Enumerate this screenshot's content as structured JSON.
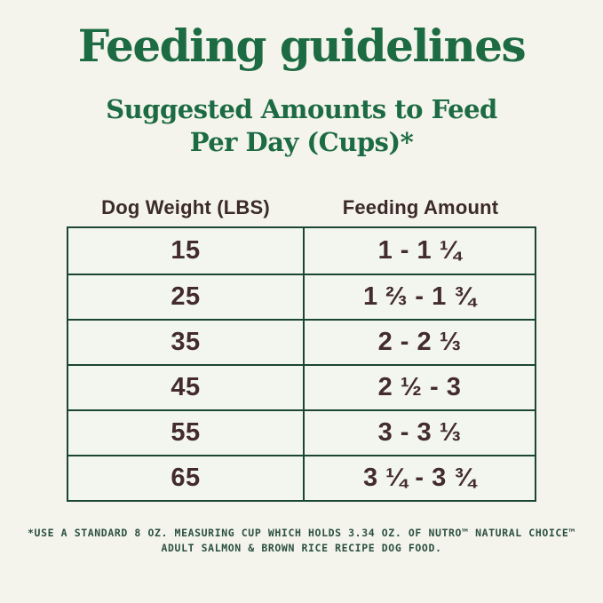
{
  "page": {
    "title": "Feeding guidelines",
    "subtitle_line1": "Suggested Amounts to Feed",
    "subtitle_line2": "Per Day (Cups)*"
  },
  "table": {
    "headers": {
      "weight": "Dog Weight (LBS)",
      "amount": "Feeding Amount"
    },
    "rows": [
      {
        "weight": "15",
        "amount": "1 - 1 ¼"
      },
      {
        "weight": "25",
        "amount": "1 ⅔ - 1 ¾"
      },
      {
        "weight": "35",
        "amount": "2 - 2 ⅓"
      },
      {
        "weight": "45",
        "amount": "2 ½ - 3"
      },
      {
        "weight": "55",
        "amount": "3 - 3 ⅓"
      },
      {
        "weight": "65",
        "amount": "3 ¼ - 3 ¾"
      }
    ]
  },
  "footnote": {
    "line1": "*USE A STANDARD 8 OZ. MEASURING CUP WHICH HOLDS 3.34 OZ. OF NUTRO™ NATURAL CHOICE™",
    "line2": "ADULT SALMON & BROWN RICE RECIPE DOG FOOD."
  },
  "colors": {
    "background": "#f5f4ec",
    "title_green": "#1c6b43",
    "footnote_green": "#2b5140",
    "table_border_green": "#1b4632",
    "cell_background": "#f3f6ef",
    "cell_text_brown": "#432b2e",
    "header_text_brown": "#3b2a28"
  },
  "chart_data": {
    "type": "table",
    "title": "Feeding guidelines",
    "subtitle": "Suggested Amounts to Feed Per Day (Cups)*",
    "columns": [
      "Dog Weight (LBS)",
      "Feeding Amount"
    ],
    "rows": [
      [
        "15",
        "1 - 1 ¼"
      ],
      [
        "25",
        "1 ⅔ - 1 ¾"
      ],
      [
        "35",
        "2 - 2 ⅓"
      ],
      [
        "45",
        "2 ½ - 3"
      ],
      [
        "55",
        "3 - 3 ⅓"
      ],
      [
        "65",
        "3 ¼ - 3 ¾"
      ]
    ],
    "footnote": "*USE A STANDARD 8 OZ. MEASURING CUP WHICH HOLDS 3.34 OZ. OF NUTRO™ NATURAL CHOICE™ ADULT SALMON & BROWN RICE RECIPE DOG FOOD."
  }
}
